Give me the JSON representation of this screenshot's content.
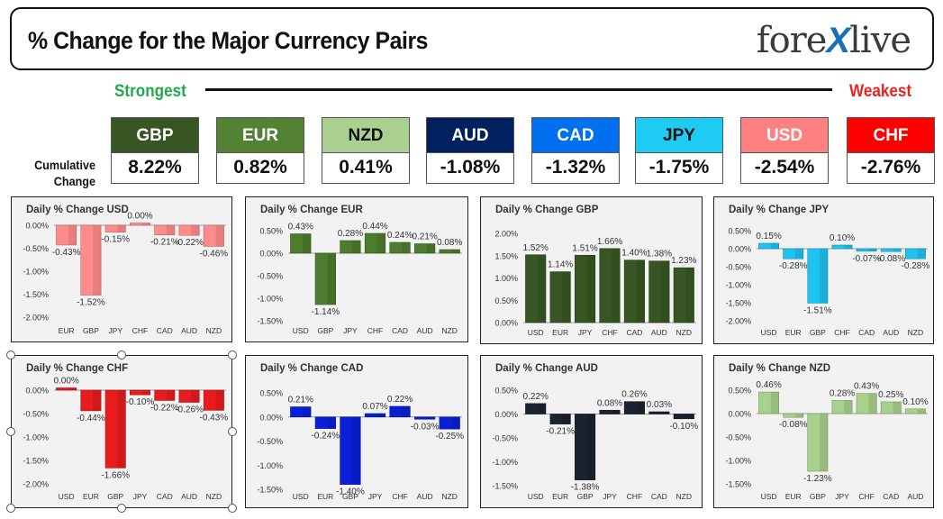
{
  "header": {
    "title": "% Change for the Major Currency Pairs",
    "logo_text_left": "fore",
    "logo_text_x": "X",
    "logo_text_right": "live"
  },
  "scale": {
    "strongest_label": "Strongest",
    "weakest_label": "Weakest",
    "cumulative_label_line1": "Cumulative",
    "cumulative_label_line2": "Change"
  },
  "rankings": [
    {
      "currency": "GBP",
      "value": "8.22%",
      "bg": "#375623",
      "fg": "#ffffff"
    },
    {
      "currency": "EUR",
      "value": "0.82%",
      "bg": "#548235",
      "fg": "#ffffff"
    },
    {
      "currency": "NZD",
      "value": "0.41%",
      "bg": "#a9d08e",
      "fg": "#111111"
    },
    {
      "currency": "AUD",
      "value": "-1.08%",
      "bg": "#002060",
      "fg": "#ffffff"
    },
    {
      "currency": "CAD",
      "value": "-1.32%",
      "bg": "#0070f0",
      "fg": "#ffffff"
    },
    {
      "currency": "JPY",
      "value": "-1.75%",
      "bg": "#1ecbf2",
      "fg": "#111111"
    },
    {
      "currency": "USD",
      "value": "-2.54%",
      "bg": "#ff8080",
      "fg": "#ffffff"
    },
    {
      "currency": "CHF",
      "value": "-2.76%",
      "bg": "#ff0000",
      "fg": "#ffffff"
    }
  ],
  "chart_data": [
    {
      "type": "bar",
      "title": "Daily % Change USD",
      "categories": [
        "EUR",
        "GBP",
        "JPY",
        "CHF",
        "CAD",
        "AUD",
        "NZD"
      ],
      "values": [
        -0.43,
        -1.52,
        -0.15,
        0.0,
        -0.21,
        -0.22,
        -0.46
      ],
      "labels": [
        "-0.43%",
        "-1.52%",
        "-0.15%",
        "0.00%",
        "-0.21%",
        "-0.22%",
        "-0.46%"
      ],
      "ylim": [
        -2.0,
        0.0
      ],
      "ticks": [
        0.0,
        -0.5,
        -1.0,
        -1.5,
        -2.0
      ],
      "tick_labels": [
        "0.00%",
        "-0.50%",
        "-1.00%",
        "-1.50%",
        "-2.00%"
      ],
      "color": "#ff8c8c"
    },
    {
      "type": "bar",
      "title": "Daily % Change EUR",
      "categories": [
        "USD",
        "GBP",
        "JPY",
        "CHF",
        "CAD",
        "AUD",
        "NZD"
      ],
      "values": [
        0.43,
        -1.14,
        0.28,
        0.44,
        0.24,
        0.21,
        0.08
      ],
      "labels": [
        "0.43%",
        "-1.14%",
        "0.28%",
        "0.44%",
        "0.24%",
        "0.21%",
        "0.08%"
      ],
      "ylim": [
        -1.5,
        0.5
      ],
      "ticks": [
        0.5,
        0.0,
        -0.5,
        -1.0,
        -1.5
      ],
      "tick_labels": [
        "0.50%",
        "0.00%",
        "-0.50%",
        "-1.00%",
        "-1.50%"
      ],
      "color": "#4e7c2e"
    },
    {
      "type": "bar",
      "title": "Daily % Change GBP",
      "categories": [
        "USD",
        "EUR",
        "JPY",
        "CHF",
        "CAD",
        "AUD",
        "NZD"
      ],
      "values": [
        1.52,
        1.14,
        1.51,
        1.66,
        1.4,
        1.38,
        1.23
      ],
      "labels": [
        "1.52%",
        "1.14%",
        "1.51%",
        "1.66%",
        "1.40%",
        "1.38%",
        "1.23%"
      ],
      "ylim": [
        0.0,
        2.0
      ],
      "ticks": [
        2.0,
        1.5,
        1.0,
        0.5,
        0.0
      ],
      "tick_labels": [
        "2.00%",
        "1.50%",
        "1.00%",
        "0.50%",
        "0.00%"
      ],
      "color": "#375623"
    },
    {
      "type": "bar",
      "title": "Daily % Change JPY",
      "categories": [
        "USD",
        "EUR",
        "GBP",
        "CHF",
        "CAD",
        "AUD",
        "NZD"
      ],
      "values": [
        0.15,
        -0.28,
        -1.51,
        0.1,
        -0.07,
        -0.08,
        -0.28
      ],
      "labels": [
        "0.15%",
        "-0.28%",
        "-1.51%",
        "0.10%",
        "-0.07%",
        "-0.08%",
        "-0.28%"
      ],
      "ylim": [
        -2.0,
        0.5
      ],
      "ticks": [
        0.5,
        0.0,
        -0.5,
        -1.0,
        -1.5,
        -2.0
      ],
      "tick_labels": [
        "0.50%",
        "0.00%",
        "-0.50%",
        "-1.00%",
        "-1.50%",
        "-2.00%"
      ],
      "color": "#1ec4ef"
    },
    {
      "type": "bar",
      "title": "Daily % Change CHF",
      "categories": [
        "USD",
        "EUR",
        "GBP",
        "JPY",
        "CAD",
        "AUD",
        "NZD"
      ],
      "values": [
        0.0,
        -0.44,
        -1.66,
        -0.1,
        -0.22,
        -0.26,
        -0.43
      ],
      "labels": [
        "0.00%",
        "-0.44%",
        "-1.66%",
        "-0.10%",
        "-0.22%",
        "-0.26%",
        "-0.43%"
      ],
      "ylim": [
        -2.0,
        0.0
      ],
      "ticks": [
        0.0,
        -0.5,
        -1.0,
        -1.5,
        -2.0
      ],
      "tick_labels": [
        "0.00%",
        "-0.50%",
        "-1.00%",
        "-1.50%",
        "-2.00%"
      ],
      "color": "#e81c1c"
    },
    {
      "type": "bar",
      "title": "Daily % Change CAD",
      "categories": [
        "USD",
        "EUR",
        "GBP",
        "JPY",
        "CHF",
        "AUD",
        "NZD"
      ],
      "values": [
        0.21,
        -0.24,
        -1.4,
        0.07,
        0.22,
        -0.03,
        -0.25
      ],
      "labels": [
        "0.21%",
        "-0.24%",
        "-1.40%",
        "0.07%",
        "0.22%",
        "-0.03%",
        "-0.25%"
      ],
      "ylim": [
        -1.5,
        0.5
      ],
      "ticks": [
        0.5,
        0.0,
        -0.5,
        -1.0,
        -1.5
      ],
      "tick_labels": [
        "0.50%",
        "0.00%",
        "-0.50%",
        "-1.00%",
        "-1.50%"
      ],
      "color": "#0a1fd6"
    },
    {
      "type": "bar",
      "title": "Daily % Change AUD",
      "categories": [
        "USD",
        "EUR",
        "GBP",
        "JPY",
        "CHF",
        "CAD",
        "NZD"
      ],
      "values": [
        0.22,
        -0.21,
        -1.38,
        0.08,
        0.26,
        0.03,
        -0.1
      ],
      "labels": [
        "0.22%",
        "-0.21%",
        "-1.38%",
        "0.08%",
        "0.26%",
        "0.03%",
        "-0.10%"
      ],
      "ylim": [
        -1.5,
        0.5
      ],
      "ticks": [
        0.5,
        0.0,
        -0.5,
        -1.0,
        -1.5
      ],
      "tick_labels": [
        "0.50%",
        "0.00%",
        "-0.50%",
        "-1.00%",
        "-1.50%"
      ],
      "color": "#1b2330"
    },
    {
      "type": "bar",
      "title": "Daily % Change NZD",
      "categories": [
        "USD",
        "EUR",
        "GBP",
        "JPY",
        "CHF",
        "CAD",
        "AUD"
      ],
      "values": [
        0.46,
        -0.08,
        -1.23,
        0.28,
        0.43,
        0.25,
        0.1
      ],
      "labels": [
        "0.46%",
        "-0.08%",
        "-1.23%",
        "0.28%",
        "0.43%",
        "0.25%",
        "0.10%"
      ],
      "ylim": [
        -1.5,
        0.5
      ],
      "ticks": [
        0.5,
        0.0,
        -0.5,
        -1.0,
        -1.5
      ],
      "tick_labels": [
        "0.50%",
        "0.00%",
        "-0.50%",
        "-1.00%",
        "-1.50%"
      ],
      "color": "#a8d18b"
    }
  ]
}
